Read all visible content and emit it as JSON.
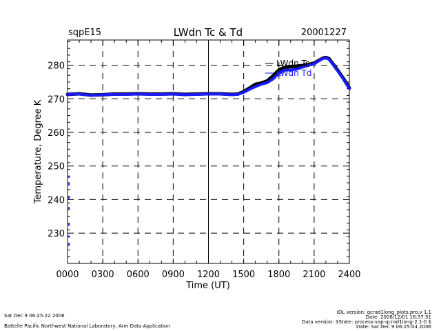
{
  "header": {
    "site": "sqpE15",
    "title": "LWdn Tc & Td",
    "date": "20001227"
  },
  "footer": {
    "left_line1": "Sat Dec  9 06:25:22 2006",
    "left_line2": "Battelle Pacific Northwest National Laboratory, Arm Data Application",
    "right_line1": "IDL version: qcrad1long_plots.pro,v 1.1",
    "right_line2": "Date: 2006/12/01 16:37:51",
    "right_line3": "Data version: $State: process-vap-qcrad1long-2.1-0 $",
    "right_line4": "Date: Sat Dec  9 06:25:04 2006"
  },
  "colors": {
    "tc": "#000000",
    "td": "#1a1aff",
    "grid": "#000000",
    "background": "#ffffff"
  },
  "chart_data": {
    "type": "line",
    "title": "LWdn Tc & Td",
    "xlabel": "Time (UT)",
    "ylabel": "Temperature, Degree K",
    "xlim": [
      0,
      2400
    ],
    "ylim": [
      221,
      287.5
    ],
    "x_ticks": [
      0,
      300,
      600,
      900,
      1200,
      1500,
      1800,
      2100,
      2400
    ],
    "x_tick_labels": [
      "0000",
      "0300",
      "0600",
      "0900",
      "1200",
      "1500",
      "1800",
      "2100",
      "2400"
    ],
    "y_ticks": [
      230,
      240,
      250,
      260,
      270,
      280
    ],
    "y_tick_labels": [
      "230",
      "240",
      "250",
      "260",
      "270",
      "280"
    ],
    "grid": "dashed",
    "legend": "top-right",
    "series": [
      {
        "name": "LWdn Tc",
        "color": "#000000",
        "x": [
          0,
          100,
          200,
          300,
          400,
          500,
          600,
          700,
          800,
          900,
          1000,
          1100,
          1200,
          1300,
          1400,
          1450,
          1500,
          1550,
          1600,
          1650,
          1700,
          1750,
          1800,
          1850,
          1900,
          1950,
          2000,
          2050,
          2100,
          2150,
          2175,
          2200,
          2225,
          2250,
          2300,
          2350,
          2400
        ],
        "y": [
          271.3,
          271.5,
          271.1,
          271.2,
          271.4,
          271.4,
          271.5,
          271.4,
          271.4,
          271.5,
          271.3,
          271.4,
          271.5,
          271.5,
          271.3,
          271.4,
          272.1,
          273.2,
          274.3,
          274.7,
          275.3,
          276.8,
          278.6,
          279.4,
          279.6,
          279.7,
          279.9,
          280.2,
          280.6,
          281.6,
          282.1,
          282.3,
          282.0,
          280.9,
          278.5,
          276.0,
          273.2
        ]
      },
      {
        "name": "LWdn Td",
        "color": "#1a1aff",
        "x": [
          0,
          100,
          200,
          300,
          400,
          500,
          600,
          700,
          800,
          900,
          1000,
          1100,
          1200,
          1300,
          1400,
          1450,
          1500,
          1550,
          1600,
          1650,
          1700,
          1750,
          1800,
          1850,
          1900,
          1950,
          2000,
          2050,
          2100,
          2150,
          2175,
          2200,
          2225,
          2250,
          2300,
          2350,
          2400
        ],
        "y": [
          271.3,
          271.4,
          271.0,
          271.2,
          271.3,
          271.3,
          271.4,
          271.3,
          271.3,
          271.4,
          271.2,
          271.3,
          271.4,
          271.4,
          271.2,
          271.3,
          271.9,
          272.8,
          273.6,
          274.3,
          274.8,
          275.9,
          277.6,
          278.5,
          278.6,
          278.8,
          279.4,
          279.9,
          280.4,
          281.5,
          282.0,
          282.1,
          281.8,
          280.7,
          278.3,
          275.8,
          273.0
        ]
      }
    ],
    "stray_points": {
      "x": [
        0,
        0,
        0,
        0,
        0,
        0,
        0
      ],
      "y": [
        246.8,
        244.5,
        240.5,
        237.5,
        232.5,
        229.0,
        226.5
      ]
    }
  }
}
